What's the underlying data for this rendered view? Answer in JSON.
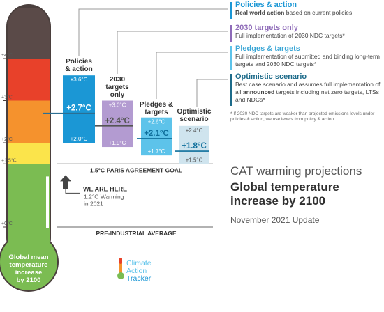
{
  "chart_data": {
    "type": "bar",
    "title": "CAT warming projections",
    "subtitle": "Global temperature increase by 2100",
    "update": "November 2021 Update",
    "thermometer": {
      "label": [
        "Global mean",
        "temperature",
        "increase",
        "by 2100"
      ],
      "current_value": 1.2,
      "ticks": [
        {
          "value": 4,
          "label": "+4°C"
        },
        {
          "value": 3,
          "label": "+3°C"
        },
        {
          "value": 2,
          "label": "+2°C"
        },
        {
          "value": 1.5,
          "label": "+1.5°C"
        },
        {
          "value": 0,
          "label": "+0°C"
        }
      ],
      "bands": [
        {
          "from": 4,
          "to": 5.2,
          "color": "#5a4a48"
        },
        {
          "from": 3,
          "to": 4,
          "color": "#e8412a"
        },
        {
          "from": 2,
          "to": 3,
          "color": "#f5922d"
        },
        {
          "from": 1.5,
          "to": 2,
          "color": "#fbe44b"
        },
        {
          "from": 0,
          "to": 1.5,
          "color": "#7bbc52"
        }
      ]
    },
    "scenarios": [
      {
        "key": "policies",
        "name_lines": [
          "Policies",
          "& action"
        ],
        "high": 3.6,
        "central": 2.7,
        "low": 2.0,
        "high_label": "+3.6°C",
        "central_label": "+2.7°C",
        "low_label": "+2.0°C",
        "color": "#1b97d5",
        "text_color": "#ffffff",
        "central_color": "#1b97d5"
      },
      {
        "key": "ndc2030",
        "name_lines": [
          "2030",
          "targets",
          "only"
        ],
        "high": 3.0,
        "central": 2.4,
        "low": 1.9,
        "high_label": "+3.0°C",
        "central_label": "+2.4°C",
        "low_label": "+1.9°C",
        "color": "#b39bd1",
        "text_color": "#ffffff",
        "central_color": "#555555"
      },
      {
        "key": "pledges",
        "name_lines": [
          "Pledges &",
          "targets"
        ],
        "high": 2.6,
        "central": 2.1,
        "low": 1.7,
        "high_label": "+2.6°C",
        "central_label": "+2.1°C",
        "low_label": "+1.7°C",
        "color": "#5dc3ea",
        "text_color": "#ffffff",
        "central_color": "#0f6f9c"
      },
      {
        "key": "optimistic",
        "name_lines": [
          "Optimistic",
          "scenario"
        ],
        "high": 2.4,
        "central": 1.8,
        "low": 1.5,
        "high_label": "+2.4°C",
        "central_label": "+1.8°C",
        "low_label": "+1.5°C",
        "color": "#cfe4ee",
        "text_color": "#555555",
        "central_color": "#0f6f9c"
      }
    ],
    "reference_lines": [
      {
        "value": 1.5,
        "label": "1.5°C PARIS AGREEMENT GOAL"
      },
      {
        "value": 0,
        "label": "PRE-INDUSTRIAL AVERAGE"
      }
    ],
    "we_are_here": {
      "title": "WE ARE HERE",
      "sub": [
        "1.2°C Warming",
        "in 2021"
      ]
    }
  },
  "legend": [
    {
      "title": "Policies & action",
      "color": "#1b97d5",
      "title_color": "#1b97d5",
      "bold_lead": "Real world action",
      "desc": " based on current policies"
    },
    {
      "title": "2030 targets only",
      "color": "#8e6bb8",
      "title_color": "#8e6bb8",
      "bold_lead": "",
      "desc": "Full implementation of 2030 NDC targets*"
    },
    {
      "title": "Pledges & targets",
      "color": "#5dc3ea",
      "title_color": "#3aa6d6",
      "bold_lead": "",
      "desc": "Full implementation of submitted and binding long-term targets and 2030 NDC targets*"
    },
    {
      "title": "Optimistic scenario",
      "color": "#1d6b8a",
      "title_color": "#1d6b8a",
      "bold_lead": "",
      "desc_parts": [
        "Best case scenario and assumes full implementation of all ",
        "announced",
        " targets including net zero targets, LTSs and NDCs*"
      ]
    }
  ],
  "footnote": "* If 2030 NDC targets are weaker than projected emissions levels under policies & action, we use levels from policy & action",
  "logo": {
    "lines": [
      "Climate",
      "Action",
      "Tracker"
    ]
  }
}
